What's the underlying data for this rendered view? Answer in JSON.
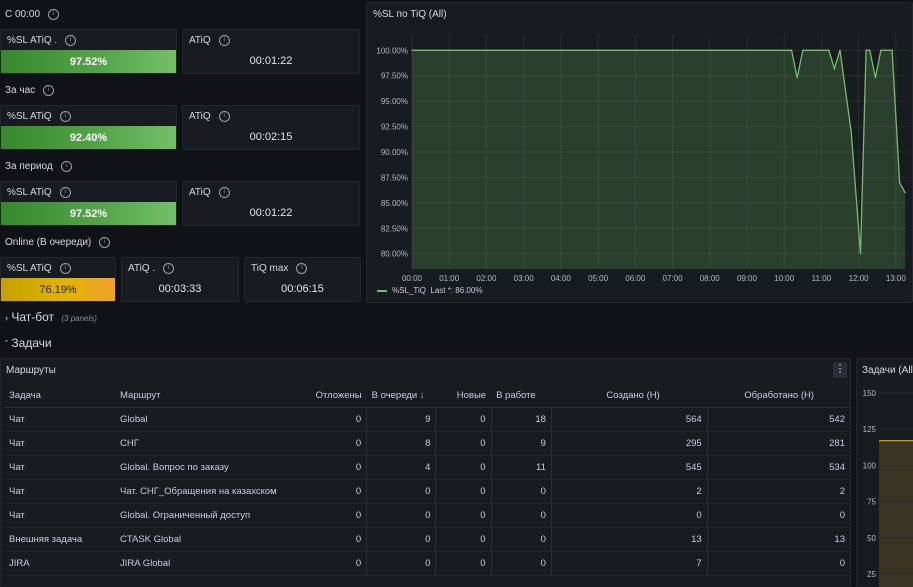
{
  "stats": {
    "sections": [
      "С 00:00",
      "За час",
      "За период",
      "Online (В очереди)"
    ],
    "rows": [
      {
        "sl_label": "%SL ATiQ .",
        "sl_value": "97.52%",
        "atiq_label": "ATiQ",
        "atiq_value": "00:01:22"
      },
      {
        "sl_label": "%SL ATiQ",
        "sl_value": "92.40%",
        "atiq_label": "ATiQ",
        "atiq_value": "00:02:15"
      },
      {
        "sl_label": "%SL ATiQ",
        "sl_value": "97.52%",
        "atiq_label": "ATiQ",
        "atiq_value": "00:01:22"
      }
    ],
    "online": {
      "sl_label": "%SL ATiQ",
      "sl_value": "76.19%",
      "atiq_label": "ATiQ .",
      "atiq_value": "00:03:33",
      "tiq_label": "TiQ max",
      "tiq_value": "00:06:15"
    },
    "sl_fill": [
      97.52,
      92.4,
      97.52
    ],
    "online_fill": 76.19
  },
  "chart_panel": {
    "title": "%SL по TiQ (All)",
    "legend_name": "%SL_TiQ",
    "legend_last": "Last *: 86.00%"
  },
  "chart_data": {
    "type": "area",
    "title": "%SL по TiQ (All)",
    "x_ticks": [
      "00:00",
      "01:00",
      "02:00",
      "03:00",
      "04:00",
      "05:00",
      "06:00",
      "07:00",
      "08:00",
      "09:00",
      "10:00",
      "11:00",
      "12:00",
      "13:00"
    ],
    "y_ticks": [
      "100.00%",
      "97.50%",
      "95.00%",
      "92.50%",
      "90.00%",
      "87.50%",
      "85.00%",
      "82.50%",
      "80.00%"
    ],
    "ylim": [
      78.5,
      101.5
    ],
    "xlim": [
      0,
      13.3
    ],
    "series": [
      {
        "name": "%SL_TiQ",
        "color": "#73bf69",
        "x": [
          0,
          10.2,
          10.35,
          10.5,
          10.6,
          11.0,
          11.2,
          11.35,
          11.5,
          11.8,
          12.05,
          12.2,
          12.3,
          12.45,
          12.6,
          12.7,
          12.9,
          13.1,
          13.25
        ],
        "y": [
          100,
          100,
          97.3,
          100,
          100,
          100,
          100,
          98.2,
          100,
          92,
          80,
          100,
          100,
          97.3,
          100,
          100,
          100,
          87,
          86
        ]
      }
    ],
    "grid": true,
    "legend": "bottom-left"
  },
  "rows_sections": {
    "chatbot": "Чат-бот",
    "chatbot_note": "(3 panels)",
    "tasks": "Задачи"
  },
  "routes": {
    "title": "Маршруты",
    "columns": [
      "Задача",
      "Маршрут",
      "Отложены",
      "В очереди ↓",
      "Новые",
      "В работе",
      "Создано (Н)",
      "Обработано (Н)"
    ],
    "rows": [
      [
        "Чат",
        "Global",
        "0",
        "9",
        "0",
        "18",
        "564",
        "542"
      ],
      [
        "Чат",
        "СНГ",
        "0",
        "8",
        "0",
        "9",
        "295",
        "281"
      ],
      [
        "Чат",
        "Global. Вопрос по заказу",
        "0",
        "4",
        "0",
        "11",
        "545",
        "534"
      ],
      [
        "Чат",
        "Чат. СНГ_Обращения на казахском",
        "0",
        "0",
        "0",
        "0",
        "2",
        "2"
      ],
      [
        "Чат",
        "Global. Ограниченный доступ",
        "0",
        "0",
        "0",
        "0",
        "0",
        "0"
      ],
      [
        "Внешняя задача",
        "CTASK Global",
        "0",
        "0",
        "0",
        "0",
        "13",
        "13"
      ],
      [
        "JIRA",
        "JIRA Global",
        "0",
        "0",
        "0",
        "0",
        "7",
        "0"
      ]
    ]
  },
  "tasks_panel": {
    "title": "Задачи (All)",
    "y_ticks": [
      "150",
      "125",
      "100",
      "75",
      "50",
      "25"
    ],
    "band_color": "#f2cc0c",
    "level": 117
  }
}
